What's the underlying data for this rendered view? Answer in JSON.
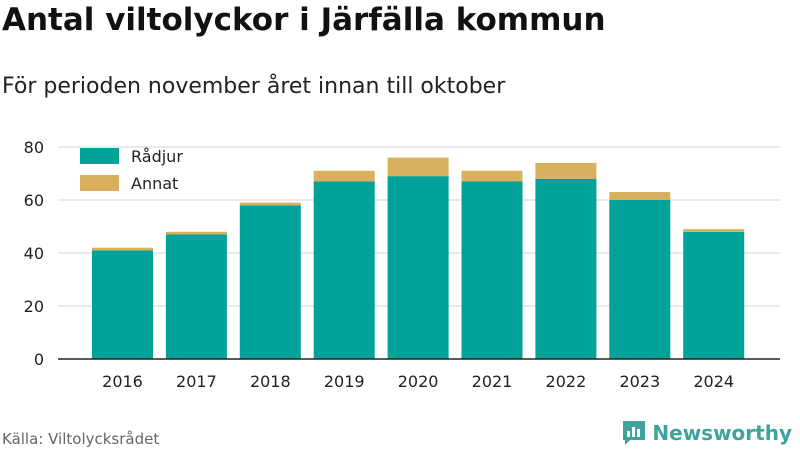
{
  "title": "Antal viltolyckor i Järfälla kommun",
  "subtitle": "För perioden november året innan till oktober",
  "source": "Källa: Viltolycksrådet",
  "brand": "Newsworthy",
  "icons": {
    "brand_logo": "bar-chart-icon"
  },
  "colors": {
    "radjur": "#00a29a",
    "annat": "#d8b05e",
    "grid": "#dddddd",
    "axis": "#222222",
    "brand": "#3ea39a"
  },
  "chart_data": {
    "type": "bar",
    "stacked": true,
    "categories": [
      "2016",
      "2017",
      "2018",
      "2019",
      "2020",
      "2021",
      "2022",
      "2023",
      "2024"
    ],
    "series": [
      {
        "name": "Rådjur",
        "values": [
          41,
          47,
          58,
          67,
          69,
          67,
          68,
          60,
          48
        ]
      },
      {
        "name": "Annat",
        "values": [
          1,
          1,
          1,
          4,
          7,
          4,
          6,
          3,
          1
        ]
      }
    ],
    "yticks": [
      0,
      20,
      40,
      60,
      80
    ],
    "ylim": [
      0,
      80
    ],
    "xlabel": "",
    "ylabel": "",
    "grid": true,
    "legend": "top-left"
  }
}
